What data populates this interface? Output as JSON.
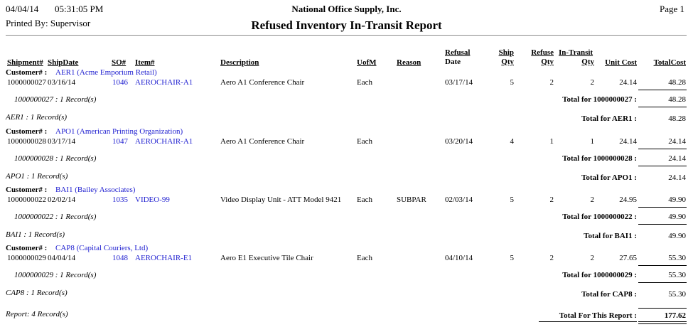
{
  "header": {
    "date": "04/04/14",
    "time": "05:31:05 PM",
    "company": "National Office Supply, Inc.",
    "page": "Page 1",
    "printed_by": "Printed By: Supervisor",
    "title": "Refused Inventory In-Transit Report"
  },
  "columns": {
    "shipment": "Shipment#",
    "ship_date": "ShipDate",
    "so": "SO#",
    "item": "Item#",
    "description": "Description",
    "uom": "UofM",
    "reason": "Reason",
    "refusal_1": "Refusal",
    "refusal_2": "Date",
    "ship_1": "Ship",
    "ship_2": "Qty",
    "refuse_1": "Refuse",
    "refuse_2": "Qty",
    "transit_1": "In-Transit",
    "transit_2": "Qty",
    "unit_cost": "Unit Cost",
    "total_cost": "TotalCost"
  },
  "customer_label": "Customer# :",
  "groups": [
    {
      "customer": "AER1 (Acme Emporium Retail)",
      "shipment": "1000000027",
      "ship_date": "03/16/14",
      "so": "1046",
      "item": "AEROCHAIR-A1",
      "description": "Aero A1 Conference Chair",
      "uom": "Each",
      "reason": "",
      "refusal_date": "03/17/14",
      "ship_qty": "5",
      "refuse_qty": "2",
      "transit_qty": "2",
      "unit_cost": "24.14",
      "total_cost": "48.28",
      "ship_records": "1000000027 : 1 Record(s)",
      "ship_total_label": "Total for 1000000027 :",
      "ship_total": "48.28",
      "cust_records": "AER1 : 1 Record(s)",
      "cust_total_label": "Total for AER1 :",
      "cust_total": "48.28"
    },
    {
      "customer": "APO1 (American Printing Organization)",
      "shipment": "1000000028",
      "ship_date": "03/17/14",
      "so": "1047",
      "item": "AEROCHAIR-A1",
      "description": "Aero A1 Conference Chair",
      "uom": "Each",
      "reason": "",
      "refusal_date": "03/20/14",
      "ship_qty": "4",
      "refuse_qty": "1",
      "transit_qty": "1",
      "unit_cost": "24.14",
      "total_cost": "24.14",
      "ship_records": "1000000028 : 1 Record(s)",
      "ship_total_label": "Total for 1000000028 :",
      "ship_total": "24.14",
      "cust_records": "APO1 : 1 Record(s)",
      "cust_total_label": "Total for APO1 :",
      "cust_total": "24.14"
    },
    {
      "customer": "BAI1 (Bailey Associates)",
      "shipment": "1000000022",
      "ship_date": "02/02/14",
      "so": "1035",
      "item": "VIDEO-99",
      "description": "Video Display Unit - ATT Model 9421",
      "uom": "Each",
      "reason": "SUBPAR",
      "refusal_date": "02/03/14",
      "ship_qty": "5",
      "refuse_qty": "2",
      "transit_qty": "2",
      "unit_cost": "24.95",
      "total_cost": "49.90",
      "ship_records": "1000000022 : 1 Record(s)",
      "ship_total_label": "Total for 1000000022 :",
      "ship_total": "49.90",
      "cust_records": "BAI1 : 1 Record(s)",
      "cust_total_label": "Total for BAI1 :",
      "cust_total": "49.90"
    },
    {
      "customer": "CAP8 (Capital Couriers, Ltd)",
      "shipment": "1000000029",
      "ship_date": "04/04/14",
      "so": "1048",
      "item": "AEROCHAIR-E1",
      "description": "Aero E1 Executive Tile Chair",
      "uom": "Each",
      "reason": "",
      "refusal_date": "04/10/14",
      "ship_qty": "5",
      "refuse_qty": "2",
      "transit_qty": "2",
      "unit_cost": "27.65",
      "total_cost": "55.30",
      "ship_records": "1000000029 : 1 Record(s)",
      "ship_total_label": "Total for 1000000029 :",
      "ship_total": "55.30",
      "cust_records": "CAP8 : 1 Record(s)",
      "cust_total_label": "Total for CAP8 :",
      "cust_total": "55.30"
    }
  ],
  "report": {
    "records": "Report: 4 Record(s)",
    "total_label": "Total For This Report :",
    "total": "177.62"
  }
}
